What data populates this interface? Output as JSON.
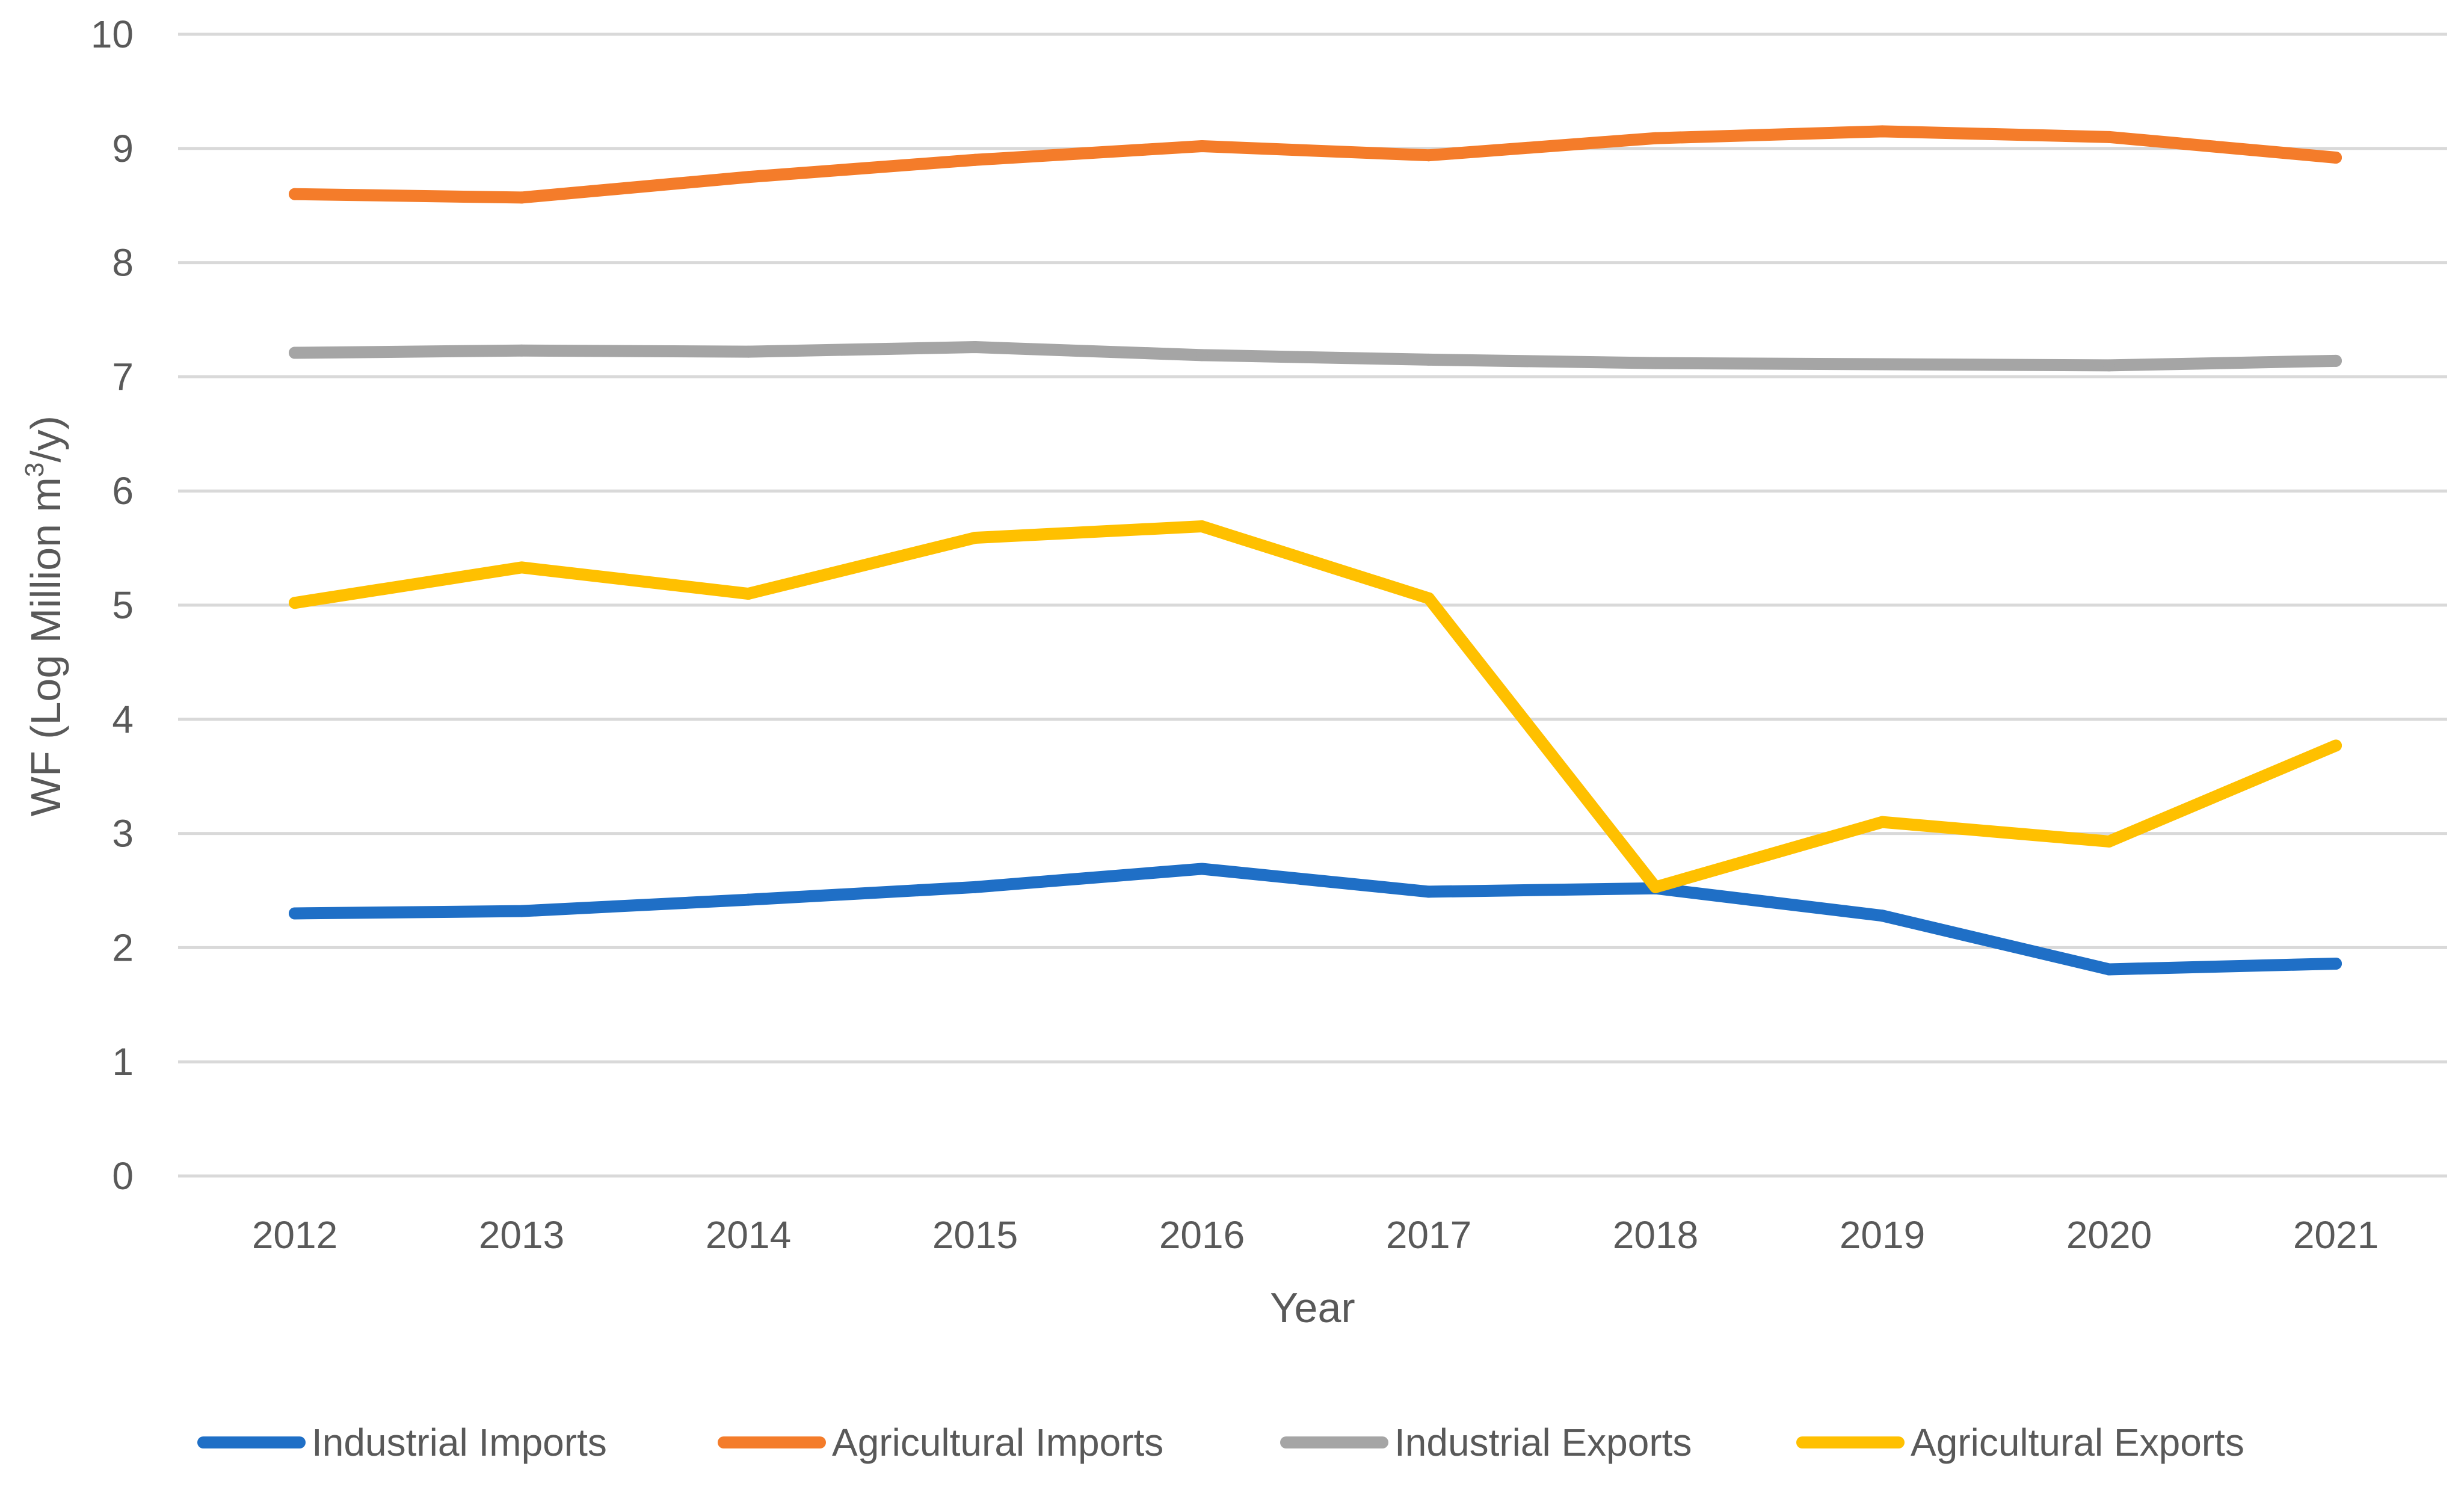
{
  "chart_data": {
    "type": "line",
    "title": "",
    "xlabel": "Year",
    "ylabel_prefix": "WF (Log Million m",
    "ylabel_superscript": "3",
    "ylabel_suffix": "/y)",
    "ylim": [
      0,
      10
    ],
    "y_ticks": [
      "0",
      "1",
      "2",
      "3",
      "4",
      "5",
      "6",
      "7",
      "8",
      "9",
      "10"
    ],
    "grid": true,
    "legend_position": "bottom",
    "categories": [
      "2012",
      "2013",
      "2014",
      "2015",
      "2016",
      "2017",
      "2018",
      "2019",
      "2020",
      "2021"
    ],
    "series": [
      {
        "name": "Industrial Imports",
        "color": "#1f6fc6",
        "values": [
          2.3,
          2.32,
          2.42,
          2.53,
          2.69,
          2.49,
          2.52,
          2.28,
          1.81,
          1.86
        ]
      },
      {
        "name": "Agricultural Imports",
        "color": "#f47c2a",
        "values": [
          8.6,
          8.57,
          8.75,
          8.9,
          9.02,
          8.94,
          9.09,
          9.15,
          9.1,
          8.92
        ]
      },
      {
        "name": "Industrial Exports",
        "color": "#a5a5a5",
        "values": [
          7.21,
          7.23,
          7.22,
          7.26,
          7.19,
          7.15,
          7.12,
          7.11,
          7.1,
          7.14
        ]
      },
      {
        "name": "Agricultural Exports",
        "color": "#ffc000",
        "values": [
          5.02,
          5.33,
          5.1,
          5.59,
          5.69,
          5.06,
          2.53,
          3.1,
          2.93,
          3.77
        ]
      }
    ]
  }
}
